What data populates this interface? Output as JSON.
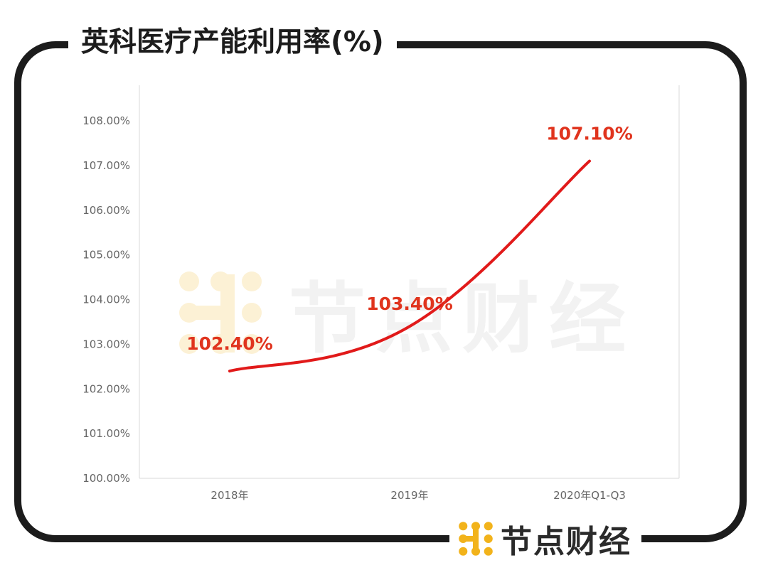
{
  "title": "英科医疗产能利用率(%)",
  "brand": "节点财经",
  "watermark": "节点财经",
  "colors": {
    "line": "#e11a1a",
    "label": "#e0341e",
    "frame": "#1c1c1c",
    "logo": "#f2b31b"
  },
  "chart_data": {
    "type": "line",
    "title": "英科医疗产能利用率(%)",
    "xlabel": "",
    "ylabel": "",
    "categories": [
      "2018年",
      "2019年",
      "2020年Q1-Q3"
    ],
    "series": [
      {
        "values": [
          102.4,
          103.4,
          107.1
        ],
        "labels": [
          "102.40%",
          "103.40%",
          "107.10%"
        ]
      }
    ],
    "ylim": [
      100,
      108
    ],
    "yticks": [
      "100.00%",
      "101.00%",
      "102.00%",
      "103.00%",
      "104.00%",
      "105.00%",
      "106.00%",
      "107.00%",
      "108.00%"
    ],
    "grid": false,
    "legend": "none",
    "smooth": true
  }
}
